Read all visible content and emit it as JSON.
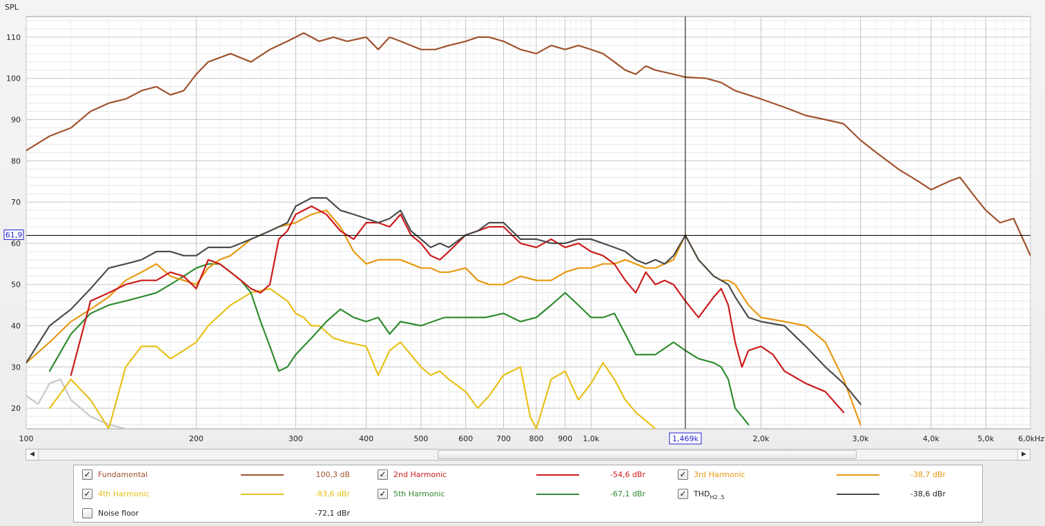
{
  "chart_data": {
    "type": "line",
    "ylabel": "SPL",
    "x_unit": "kHz",
    "x_scale": "log",
    "xlim": [
      100,
      6000
    ],
    "ylim": [
      15,
      115
    ],
    "grid": true,
    "x_ticks": [
      {
        "v": 100,
        "label": "100"
      },
      {
        "v": 200,
        "label": "200"
      },
      {
        "v": 300,
        "label": "300"
      },
      {
        "v": 400,
        "label": "400"
      },
      {
        "v": 500,
        "label": "500"
      },
      {
        "v": 600,
        "label": "600"
      },
      {
        "v": 700,
        "label": "700"
      },
      {
        "v": 800,
        "label": "800"
      },
      {
        "v": 900,
        "label": "900"
      },
      {
        "v": 1000,
        "label": "1,0k"
      },
      {
        "v": 2000,
        "label": "2,0k"
      },
      {
        "v": 3000,
        "label": "3,0k"
      },
      {
        "v": 4000,
        "label": "4,0k"
      },
      {
        "v": 5000,
        "label": "5,0k"
      },
      {
        "v": 6000,
        "label": "6,0kHz"
      }
    ],
    "y_ticks": [
      20,
      30,
      40,
      50,
      60,
      70,
      80,
      90,
      100,
      110
    ],
    "cursor": {
      "x": 1469,
      "y": 61.9,
      "x_label": "1,469k",
      "y_label": "61,9"
    },
    "series": [
      {
        "name": "Fundamental",
        "color": "#a0522d",
        "x": [
          100,
          110,
          120,
          130,
          140,
          150,
          160,
          170,
          180,
          190,
          200,
          210,
          230,
          250,
          270,
          290,
          310,
          320,
          330,
          350,
          370,
          400,
          420,
          440,
          460,
          500,
          530,
          560,
          600,
          630,
          660,
          700,
          750,
          800,
          850,
          900,
          950,
          1000,
          1050,
          1100,
          1150,
          1200,
          1250,
          1300,
          1400,
          1470,
          1600,
          1700,
          1800,
          2000,
          2200,
          2400,
          2600,
          2800,
          3000,
          3200,
          3500,
          3800,
          4000,
          4300,
          4500,
          4800,
          5000,
          5300,
          5600,
          6000
        ],
        "y": [
          82.5,
          86,
          88,
          92,
          94,
          95,
          97,
          98,
          96,
          97,
          101,
          104,
          106,
          104,
          107,
          109,
          111,
          110,
          109,
          110,
          109,
          110,
          107,
          110,
          109,
          107,
          107,
          108,
          109,
          110,
          110,
          109,
          107,
          106,
          108,
          107,
          108,
          107,
          106,
          104,
          102,
          101,
          103,
          102,
          101,
          100.3,
          100,
          99,
          97,
          95,
          93,
          91,
          90,
          89,
          85,
          82,
          78,
          75,
          73,
          75,
          76,
          71,
          68,
          65,
          66,
          57
        ]
      },
      {
        "name": "2nd Harmonic",
        "color": "#cc1a1a",
        "x": [
          120,
          130,
          140,
          150,
          160,
          170,
          180,
          190,
          200,
          210,
          220,
          230,
          240,
          250,
          260,
          270,
          280,
          290,
          300,
          320,
          340,
          360,
          380,
          400,
          420,
          440,
          460,
          480,
          500,
          520,
          540,
          560,
          600,
          630,
          660,
          700,
          750,
          800,
          850,
          900,
          950,
          1000,
          1050,
          1100,
          1150,
          1200,
          1250,
          1300,
          1350,
          1400,
          1469,
          1550,
          1650,
          1700,
          1750,
          1800,
          1850,
          1900,
          2000,
          2100,
          2200,
          2400,
          2600,
          2800
        ],
        "y": [
          28,
          46,
          48,
          50,
          51,
          51,
          53,
          52,
          49,
          56,
          55,
          53,
          51,
          49,
          48,
          50,
          61,
          63,
          67,
          69,
          67,
          63,
          61,
          65,
          65,
          64,
          67,
          62,
          60,
          57,
          56,
          58,
          62,
          63,
          64,
          64,
          60,
          59,
          61,
          59,
          60,
          58,
          57,
          55,
          51,
          48,
          53,
          50,
          51,
          50,
          46,
          42,
          47,
          49,
          45,
          36,
          30,
          34,
          35,
          33,
          29,
          26,
          24,
          19
        ]
      },
      {
        "name": "3rd Harmonic",
        "color": "#e8980f",
        "x": [
          100,
          110,
          120,
          130,
          140,
          150,
          160,
          170,
          180,
          190,
          200,
          210,
          220,
          230,
          240,
          250,
          260,
          270,
          280,
          300,
          320,
          340,
          360,
          380,
          400,
          420,
          440,
          460,
          480,
          500,
          520,
          540,
          560,
          600,
          630,
          660,
          700,
          750,
          800,
          850,
          900,
          950,
          1000,
          1050,
          1100,
          1150,
          1200,
          1250,
          1300,
          1400,
          1469,
          1550,
          1650,
          1700,
          1750,
          1800,
          1900,
          2000,
          2200,
          2400,
          2600,
          2800,
          3000
        ],
        "y": [
          31,
          36,
          41,
          44,
          47,
          51,
          53,
          55,
          52,
          51,
          50,
          54,
          56,
          57,
          59,
          61,
          62,
          63,
          64,
          65,
          67,
          68,
          64,
          58,
          55,
          56,
          56,
          56,
          55,
          54,
          54,
          53,
          53,
          54,
          51,
          50,
          50,
          52,
          51,
          51,
          53,
          54,
          54,
          55,
          55,
          56,
          55,
          54,
          54,
          56,
          62,
          56,
          52,
          51,
          51,
          50,
          45,
          42,
          41,
          40,
          36,
          27,
          16
        ]
      },
      {
        "name": "4th Harmonic",
        "color": "#e8c018",
        "x": [
          110,
          120,
          130,
          140,
          150,
          160,
          170,
          180,
          190,
          200,
          210,
          230,
          250,
          270,
          290,
          300,
          310,
          320,
          330,
          350,
          370,
          400,
          420,
          440,
          460,
          500,
          520,
          540,
          560,
          600,
          630,
          660,
          700,
          750,
          780,
          800,
          850,
          900,
          950,
          1000,
          1050,
          1100,
          1150,
          1200,
          1300
        ],
        "y": [
          20,
          27,
          22,
          15,
          30,
          35,
          35,
          32,
          34,
          36,
          40,
          45,
          48,
          49,
          46,
          43,
          42,
          40,
          40,
          37,
          36,
          35,
          28,
          34,
          36,
          30,
          28,
          29,
          27,
          24,
          20,
          23,
          28,
          30,
          18,
          15,
          27,
          29,
          22,
          26,
          31,
          27,
          22,
          19,
          15
        ]
      },
      {
        "name": "5th Harmonic",
        "color": "#2e8b2e",
        "x": [
          110,
          120,
          130,
          140,
          150,
          160,
          170,
          180,
          190,
          200,
          210,
          220,
          230,
          240,
          250,
          260,
          270,
          280,
          290,
          300,
          320,
          340,
          360,
          380,
          400,
          420,
          440,
          460,
          500,
          550,
          600,
          650,
          700,
          750,
          800,
          850,
          900,
          950,
          1000,
          1050,
          1100,
          1150,
          1200,
          1300,
          1400,
          1469,
          1550,
          1650,
          1700,
          1750,
          1800,
          1850,
          1900
        ],
        "y": [
          29,
          38,
          43,
          45,
          46,
          47,
          48,
          50,
          52,
          54,
          55,
          55,
          53,
          51,
          48,
          41,
          35,
          29,
          30,
          33,
          37,
          41,
          44,
          42,
          41,
          42,
          38,
          41,
          40,
          42,
          42,
          42,
          43,
          41,
          42,
          45,
          48,
          45,
          42,
          42,
          43,
          38,
          33,
          33,
          36,
          34,
          32,
          31,
          30,
          27,
          20,
          18,
          16
        ]
      },
      {
        "name": "THD",
        "color": "#4a4a4a",
        "x": [
          100,
          110,
          120,
          130,
          140,
          150,
          160,
          170,
          180,
          190,
          200,
          210,
          220,
          230,
          240,
          250,
          260,
          270,
          280,
          290,
          300,
          320,
          340,
          360,
          380,
          400,
          420,
          440,
          460,
          480,
          500,
          520,
          540,
          560,
          600,
          630,
          660,
          700,
          750,
          800,
          850,
          900,
          950,
          1000,
          1050,
          1100,
          1150,
          1200,
          1250,
          1300,
          1350,
          1400,
          1469,
          1550,
          1650,
          1700,
          1750,
          1800,
          1900,
          2000,
          2200,
          2400,
          2600,
          2800,
          3000
        ],
        "y": [
          31,
          40,
          44,
          49,
          54,
          55,
          56,
          58,
          58,
          57,
          57,
          59,
          59,
          59,
          60,
          61,
          62,
          63,
          64,
          65,
          69,
          71,
          71,
          68,
          67,
          66,
          65,
          66,
          68,
          63,
          61,
          59,
          60,
          59,
          62,
          63,
          65,
          65,
          61,
          61,
          60,
          60,
          61,
          61,
          60,
          59,
          58,
          56,
          55,
          56,
          55,
          57,
          61.9,
          56,
          52,
          51,
          50,
          47,
          42,
          41,
          40,
          35,
          30,
          26,
          21
        ]
      },
      {
        "name": "Noise floor",
        "color": "#c8c8c8",
        "x": [
          100,
          105,
          110,
          115,
          120,
          130,
          140,
          150,
          160,
          170,
          180,
          190,
          200
        ],
        "y": [
          23,
          21,
          26,
          27,
          22,
          18,
          16,
          15,
          14,
          14,
          13,
          13,
          13
        ]
      }
    ]
  },
  "legend": {
    "items": [
      {
        "name": "Fundamental",
        "value": "100,3 dB",
        "color": "#a0522d",
        "checked": true
      },
      {
        "name": "2nd Harmonic",
        "value": "-54,6 dBr",
        "color": "#cc1a1a",
        "checked": true
      },
      {
        "name": "3rd Harmonic",
        "value": "-38,7 dBr",
        "color": "#e8980f",
        "checked": true
      },
      {
        "name": "4th Harmonic",
        "value": "-83,6 dBr",
        "color": "#e8c018",
        "checked": true
      },
      {
        "name": "5th Harmonic",
        "value": "-67,1 dBr",
        "color": "#2e8b2e",
        "checked": true
      },
      {
        "name": "THD",
        "name_sub": "H2..5",
        "value": "-38,6 dBr",
        "color": "#4a4a4a",
        "checked": true
      },
      {
        "name": "Noise floor",
        "value": "-72,1 dBr",
        "color": "#c8c8c8",
        "checked": false
      }
    ]
  },
  "scrollbar": {
    "left_icon": "arrow-left-icon",
    "right_icon": "arrow-right-icon"
  }
}
